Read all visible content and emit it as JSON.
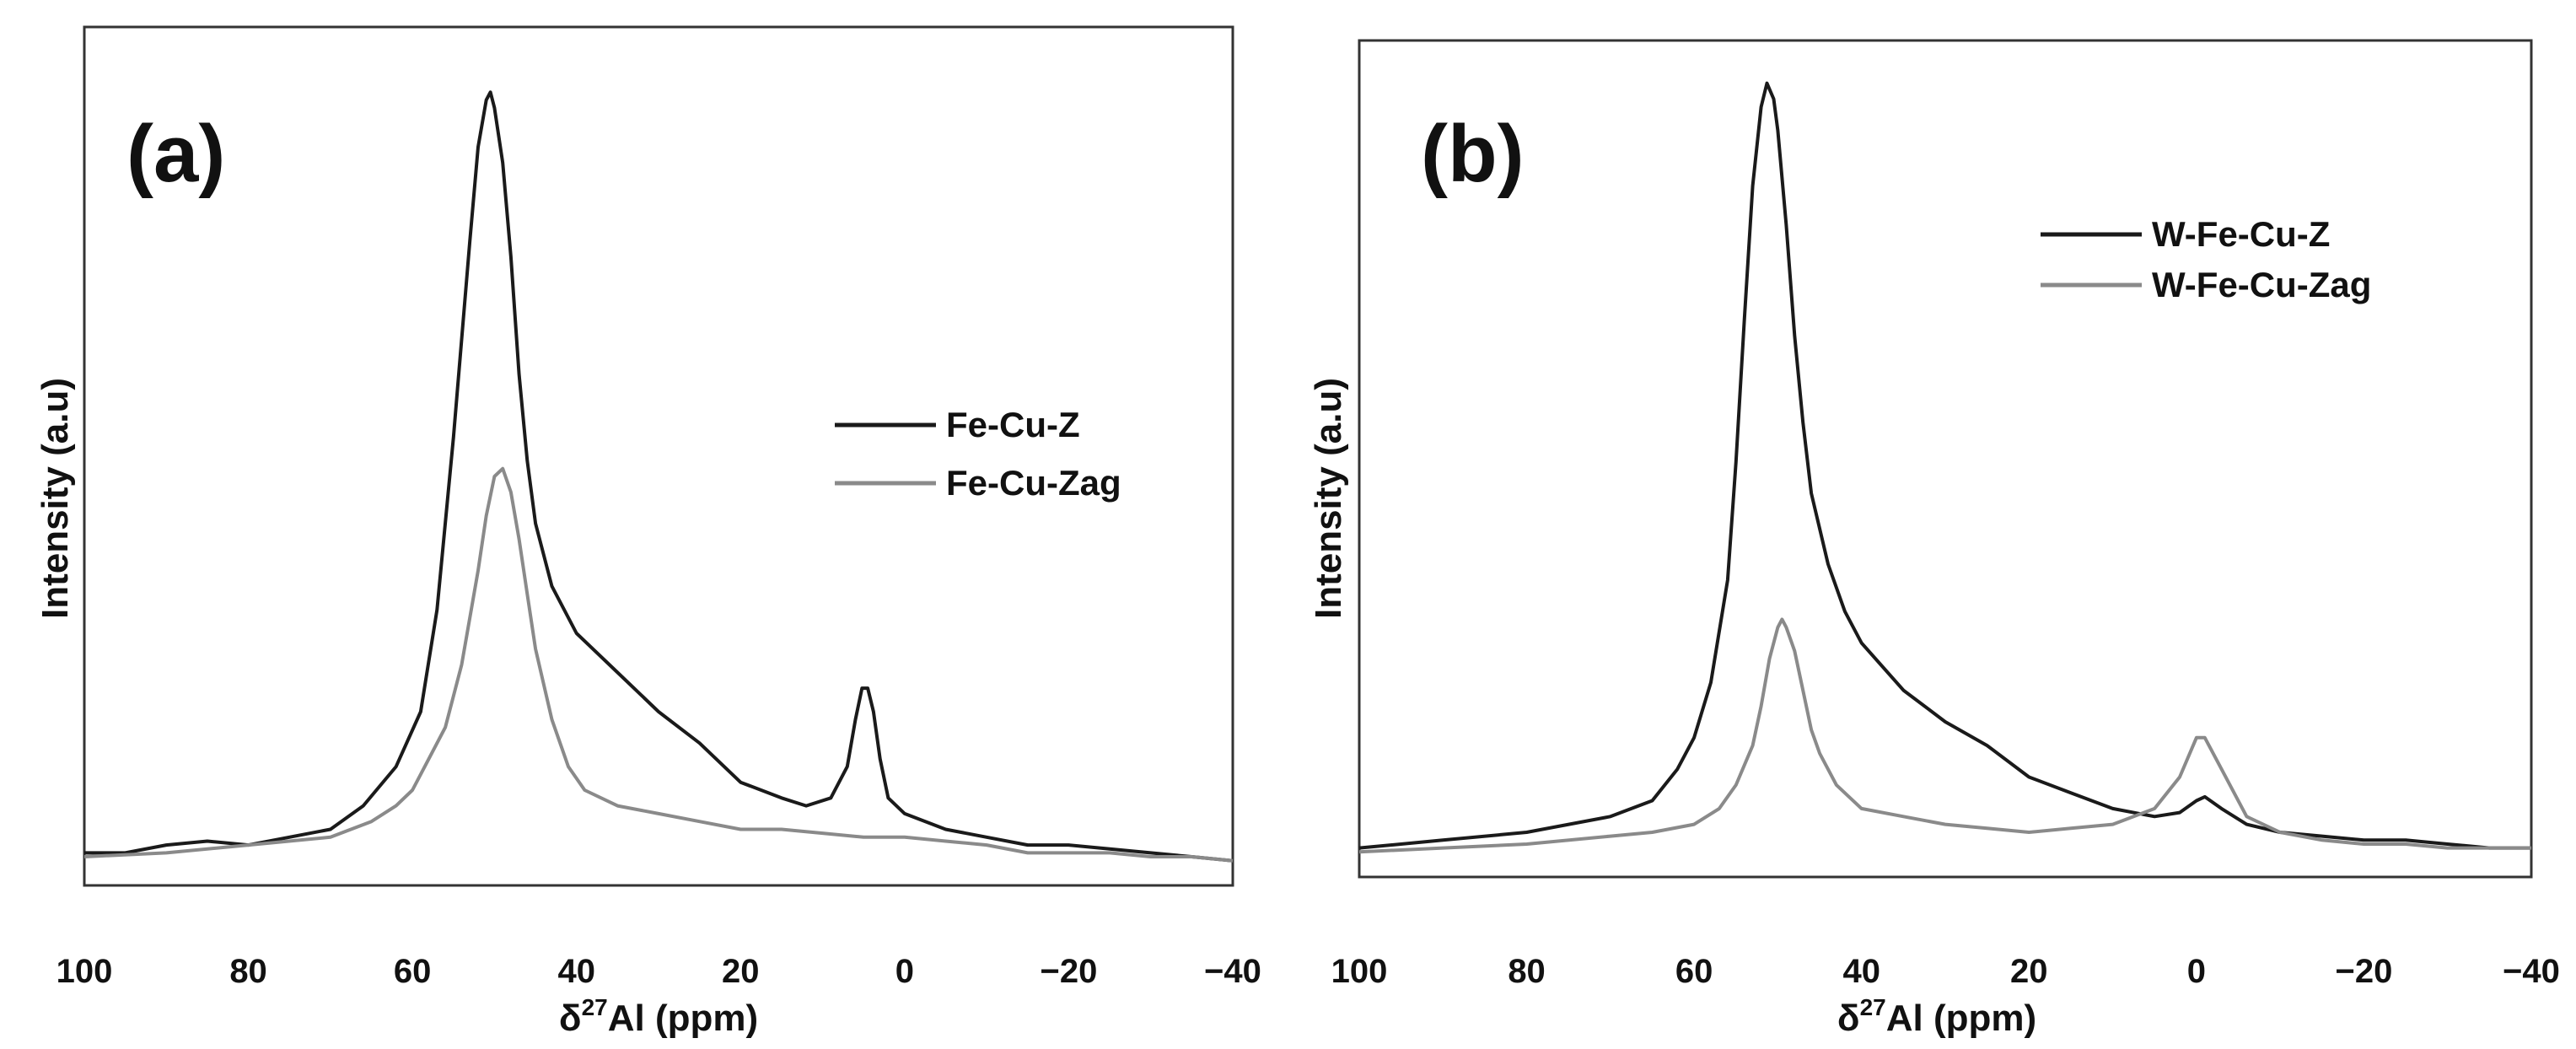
{
  "chart_data": [
    {
      "type": "line",
      "panel_label": "(a)",
      "xlabel_prefix": "δ",
      "xlabel_sup": "27",
      "xlabel_rest": "Al (ppm)",
      "ylabel": "Intensity (a.u)",
      "xlim": [
        100,
        -40
      ],
      "ylim": [
        0,
        100
      ],
      "xticks": [
        100,
        80,
        60,
        40,
        20,
        0,
        -20,
        -40
      ],
      "xtick_labels": [
        "100",
        "80",
        "60",
        "40",
        "20",
        "0",
        "−20",
        "−40"
      ],
      "legend_position": "right-middle",
      "series": [
        {
          "name": "Fe-Cu-Z",
          "color": "#1a1a1a",
          "points": [
            [
              100,
              2
            ],
            [
              95,
              2
            ],
            [
              90,
              3
            ],
            [
              85,
              3.5
            ],
            [
              80,
              3
            ],
            [
              75,
              4
            ],
            [
              70,
              5
            ],
            [
              66,
              8
            ],
            [
              62,
              13
            ],
            [
              59,
              20
            ],
            [
              57,
              33
            ],
            [
              55,
              55
            ],
            [
              53,
              80
            ],
            [
              52,
              92
            ],
            [
              51,
              98
            ],
            [
              50.5,
              99
            ],
            [
              50,
              97
            ],
            [
              49,
              90
            ],
            [
              48,
              78
            ],
            [
              47,
              63
            ],
            [
              46,
              52
            ],
            [
              45,
              44
            ],
            [
              43,
              36
            ],
            [
              40,
              30
            ],
            [
              35,
              25
            ],
            [
              30,
              20
            ],
            [
              25,
              16
            ],
            [
              20,
              11
            ],
            [
              15,
              9
            ],
            [
              12,
              8
            ],
            [
              9,
              9
            ],
            [
              7,
              13
            ],
            [
              6,
              19
            ],
            [
              5.2,
              23
            ],
            [
              4.5,
              23
            ],
            [
              3.8,
              20
            ],
            [
              3,
              14
            ],
            [
              2,
              9
            ],
            [
              0,
              7
            ],
            [
              -5,
              5
            ],
            [
              -10,
              4
            ],
            [
              -15,
              3
            ],
            [
              -20,
              3
            ],
            [
              -25,
              2.5
            ],
            [
              -30,
              2
            ],
            [
              -35,
              1.5
            ],
            [
              -40,
              1
            ]
          ]
        },
        {
          "name": "Fe-Cu-Zag",
          "color": "#8a8a8a",
          "points": [
            [
              100,
              1.5
            ],
            [
              90,
              2
            ],
            [
              80,
              3
            ],
            [
              70,
              4
            ],
            [
              65,
              6
            ],
            [
              62,
              8
            ],
            [
              60,
              10
            ],
            [
              58,
              14
            ],
            [
              56,
              18
            ],
            [
              54,
              26
            ],
            [
              52,
              38
            ],
            [
              51,
              45
            ],
            [
              50,
              50
            ],
            [
              49,
              51
            ],
            [
              48,
              48
            ],
            [
              47,
              42
            ],
            [
              46,
              35
            ],
            [
              45,
              28
            ],
            [
              43,
              19
            ],
            [
              41,
              13
            ],
            [
              39,
              10
            ],
            [
              35,
              8
            ],
            [
              30,
              7
            ],
            [
              25,
              6
            ],
            [
              20,
              5
            ],
            [
              15,
              5
            ],
            [
              10,
              4.5
            ],
            [
              5,
              4
            ],
            [
              0,
              4
            ],
            [
              -5,
              3.5
            ],
            [
              -10,
              3
            ],
            [
              -15,
              2
            ],
            [
              -20,
              2
            ],
            [
              -25,
              2
            ],
            [
              -30,
              1.5
            ],
            [
              -35,
              1.5
            ],
            [
              -40,
              1
            ]
          ]
        }
      ],
      "legend": [
        "Fe-Cu-Z",
        "Fe-Cu-Zag"
      ]
    },
    {
      "type": "line",
      "panel_label": "(b)",
      "xlabel_prefix": "δ",
      "xlabel_sup": "27",
      "xlabel_rest": "Al (ppm)",
      "ylabel": "Intensity (a.u)",
      "xlim": [
        100,
        -40
      ],
      "ylim": [
        0,
        100
      ],
      "xticks": [
        100,
        80,
        60,
        40,
        20,
        0,
        -20,
        -40
      ],
      "xtick_labels": [
        "100",
        "80",
        "60",
        "40",
        "20",
        "0",
        "−20",
        "−40"
      ],
      "legend_position": "top-right",
      "series": [
        {
          "name": "W-Fe-Cu-Z",
          "color": "#1a1a1a",
          "points": [
            [
              100,
              1
            ],
            [
              90,
              2
            ],
            [
              80,
              3
            ],
            [
              70,
              5
            ],
            [
              65,
              7
            ],
            [
              62,
              11
            ],
            [
              60,
              15
            ],
            [
              58,
              22
            ],
            [
              56,
              35
            ],
            [
              55,
              50
            ],
            [
              54,
              68
            ],
            [
              53,
              85
            ],
            [
              52,
              95
            ],
            [
              51.3,
              98
            ],
            [
              50.5,
              96
            ],
            [
              50,
              92
            ],
            [
              49,
              80
            ],
            [
              48,
              66
            ],
            [
              47,
              55
            ],
            [
              46,
              46
            ],
            [
              44,
              37
            ],
            [
              42,
              31
            ],
            [
              40,
              27
            ],
            [
              35,
              21
            ],
            [
              30,
              17
            ],
            [
              25,
              14
            ],
            [
              20,
              10
            ],
            [
              15,
              8
            ],
            [
              10,
              6
            ],
            [
              5,
              5
            ],
            [
              2,
              5.5
            ],
            [
              0,
              7
            ],
            [
              -1,
              7.5
            ],
            [
              -3,
              6
            ],
            [
              -6,
              4
            ],
            [
              -10,
              3
            ],
            [
              -15,
              2.5
            ],
            [
              -20,
              2
            ],
            [
              -25,
              2
            ],
            [
              -30,
              1.5
            ],
            [
              -35,
              1
            ],
            [
              -40,
              1
            ]
          ]
        },
        {
          "name": "W-Fe-Cu-Zag",
          "color": "#8a8a8a",
          "points": [
            [
              100,
              0.5
            ],
            [
              90,
              1
            ],
            [
              80,
              1.5
            ],
            [
              70,
              2.5
            ],
            [
              65,
              3
            ],
            [
              60,
              4
            ],
            [
              57,
              6
            ],
            [
              55,
              9
            ],
            [
              53,
              14
            ],
            [
              52,
              19
            ],
            [
              51,
              25
            ],
            [
              50,
              29
            ],
            [
              49.5,
              30
            ],
            [
              49,
              29
            ],
            [
              48,
              26
            ],
            [
              47,
              21
            ],
            [
              46,
              16
            ],
            [
              45,
              13
            ],
            [
              43,
              9
            ],
            [
              40,
              6
            ],
            [
              35,
              5
            ],
            [
              30,
              4
            ],
            [
              25,
              3.5
            ],
            [
              20,
              3
            ],
            [
              15,
              3.5
            ],
            [
              10,
              4
            ],
            [
              5,
              6
            ],
            [
              2,
              10
            ],
            [
              0,
              15
            ],
            [
              -1,
              15
            ],
            [
              -3,
              11
            ],
            [
              -6,
              5
            ],
            [
              -10,
              3
            ],
            [
              -15,
              2
            ],
            [
              -20,
              1.5
            ],
            [
              -25,
              1.5
            ],
            [
              -30,
              1
            ],
            [
              -35,
              1
            ],
            [
              -40,
              1
            ]
          ]
        }
      ],
      "legend": [
        "W-Fe-Cu-Z",
        "W-Fe-Cu-Zag"
      ]
    }
  ]
}
